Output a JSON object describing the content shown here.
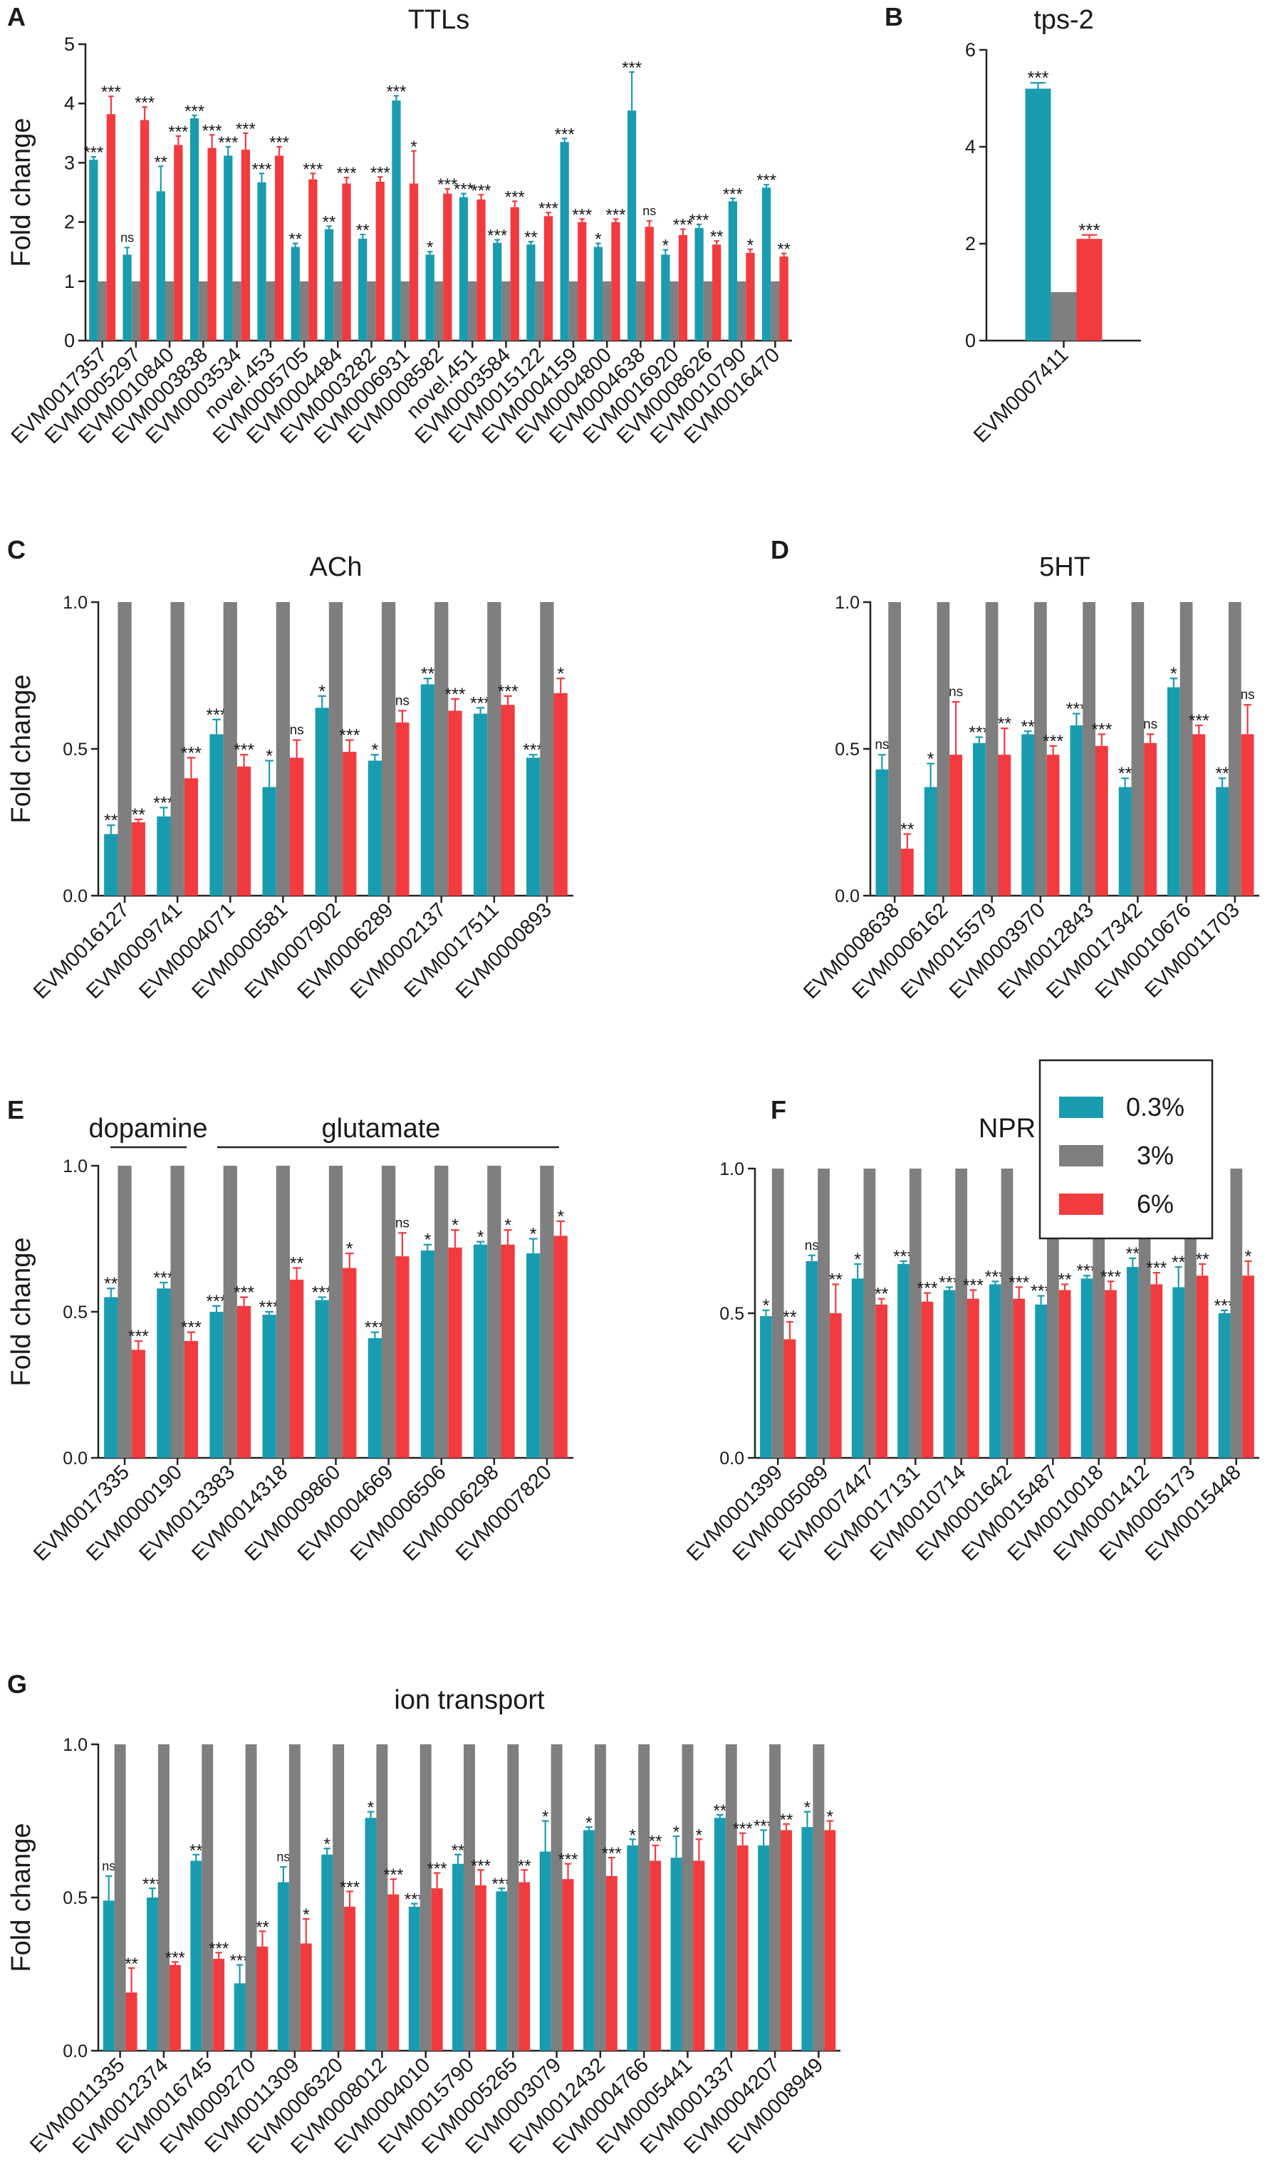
{
  "colors": {
    "c03": "#1a9cb0",
    "c3": "#7f7f7f",
    "c6": "#f23b3f",
    "axis": "#222222"
  },
  "legend": {
    "labels": [
      "0.3%",
      "3%",
      "6%"
    ]
  },
  "chart_data": [
    {
      "id": "A",
      "panel_label": "A",
      "type": "bar",
      "title": "TTLs",
      "ylabel": "Fold change",
      "ylim": [
        0,
        5
      ],
      "yticks": [
        "0",
        "1",
        "2",
        "3",
        "4",
        "5"
      ],
      "categories": [
        "EVM0017357",
        "EVM0005297",
        "EVM0010840",
        "EVM0003838",
        "EVM0003534",
        "novel.453",
        "EVM0005705",
        "EVM0004484",
        "EVM0003282",
        "EVM0006931",
        "EVM0008582",
        "novel.451",
        "EVM0003584",
        "EVM0015122",
        "EVM0004159",
        "EVM0004800",
        "EVM0004638",
        "EVM0016920",
        "EVM0008626",
        "EVM0010790",
        "EVM0016470"
      ],
      "series": [
        {
          "name": "0.3%",
          "values": [
            3.05,
            1.45,
            2.52,
            3.75,
            3.12,
            2.67,
            1.58,
            1.88,
            1.72,
            4.05,
            1.45,
            2.42,
            1.65,
            1.62,
            3.35,
            1.58,
            3.88,
            1.45,
            1.9,
            2.35,
            2.58
          ],
          "err": [
            0.05,
            0.12,
            0.42,
            0.05,
            0.15,
            0.15,
            0.06,
            0.05,
            0.07,
            0.08,
            0.05,
            0.06,
            0.05,
            0.05,
            0.06,
            0.06,
            0.65,
            0.08,
            0.06,
            0.05,
            0.05
          ],
          "sig": [
            "***",
            "ns",
            "**",
            "***",
            "***",
            "***",
            "**",
            "**",
            "**",
            "***",
            "*",
            "***",
            "***",
            "**",
            "***",
            "*",
            "***",
            "*",
            "***",
            "***",
            "***"
          ]
        },
        {
          "name": "3%",
          "values": [
            1,
            1,
            1,
            1,
            1,
            1,
            1,
            1,
            1,
            1,
            1,
            1,
            1,
            1,
            1,
            1,
            1,
            1,
            1,
            1,
            1
          ],
          "err": null,
          "sig": null
        },
        {
          "name": "6%",
          "values": [
            3.82,
            3.72,
            3.3,
            3.25,
            3.22,
            3.12,
            2.72,
            2.65,
            2.68,
            2.65,
            2.48,
            2.38,
            2.25,
            2.1,
            2.0,
            2.0,
            1.92,
            1.78,
            1.62,
            1.48,
            1.42
          ],
          "err": [
            0.3,
            0.22,
            0.15,
            0.22,
            0.28,
            0.15,
            0.1,
            0.1,
            0.08,
            0.55,
            0.08,
            0.08,
            0.1,
            0.06,
            0.05,
            0.05,
            0.1,
            0.1,
            0.06,
            0.06,
            0.05
          ],
          "sig": [
            "***",
            "***",
            "***",
            "***",
            "***",
            "***",
            "***",
            "***",
            "***",
            "*",
            "***",
            "***",
            "***",
            "***",
            "***",
            "***",
            "ns",
            "***",
            "**",
            "*",
            "**"
          ]
        }
      ]
    },
    {
      "id": "B",
      "panel_label": "B",
      "type": "bar",
      "title": "tps-2",
      "ylabel": "",
      "ylim": [
        0,
        6
      ],
      "yticks": [
        "0",
        "2",
        "4",
        "6"
      ],
      "categories": [
        "EVM0007411"
      ],
      "series": [
        {
          "name": "0.3%",
          "values": [
            5.2
          ],
          "err": [
            0.12
          ],
          "sig": [
            "***"
          ]
        },
        {
          "name": "3%",
          "values": [
            1
          ],
          "err": null,
          "sig": null
        },
        {
          "name": "6%",
          "values": [
            2.1
          ],
          "err": [
            0.08
          ],
          "sig": [
            "***"
          ]
        }
      ]
    },
    {
      "id": "C",
      "panel_label": "C",
      "type": "bar",
      "title": "ACh",
      "ylabel": "Fold change",
      "ylim": [
        0,
        1
      ],
      "yticks": [
        "0.0",
        "0.5",
        "1.0"
      ],
      "categories": [
        "EVM0016127",
        "EVM0009741",
        "EVM0004071",
        "EVM0000581",
        "EVM0007902",
        "EVM0006289",
        "EVM0002137",
        "EVM0017511",
        "EVM0000893"
      ],
      "series": [
        {
          "name": "0.3%",
          "values": [
            0.21,
            0.27,
            0.55,
            0.37,
            0.64,
            0.46,
            0.72,
            0.62,
            0.47
          ],
          "err": [
            0.03,
            0.03,
            0.05,
            0.09,
            0.04,
            0.02,
            0.02,
            0.02,
            0.01
          ],
          "sig": [
            "**",
            "***",
            "***",
            "*",
            "*",
            "*",
            "**",
            "***",
            "***"
          ]
        },
        {
          "name": "3%",
          "values": [
            1,
            1,
            1,
            1,
            1,
            1,
            1,
            1,
            1
          ],
          "err": null,
          "sig": null
        },
        {
          "name": "6%",
          "values": [
            0.25,
            0.4,
            0.44,
            0.47,
            0.49,
            0.59,
            0.63,
            0.65,
            0.69
          ],
          "err": [
            0.01,
            0.07,
            0.04,
            0.06,
            0.04,
            0.04,
            0.04,
            0.03,
            0.05
          ],
          "sig": [
            "**",
            "***",
            "***",
            "ns",
            "***",
            "ns",
            "***",
            "***",
            "*"
          ]
        }
      ]
    },
    {
      "id": "D",
      "panel_label": "D",
      "type": "bar",
      "title": "5HT",
      "ylabel": "",
      "ylim": [
        0,
        1
      ],
      "yticks": [
        "0.0",
        "0.5",
        "1.0"
      ],
      "categories": [
        "EVM0008638",
        "EVM0006162",
        "EVM0015579",
        "EVM0003970",
        "EVM0012843",
        "EVM0017342",
        "EVM0010676",
        "EVM0011703"
      ],
      "series": [
        {
          "name": "0.3%",
          "values": [
            0.43,
            0.37,
            0.52,
            0.55,
            0.58,
            0.37,
            0.71,
            0.37
          ],
          "err": [
            0.05,
            0.08,
            0.02,
            0.01,
            0.04,
            0.03,
            0.03,
            0.03
          ],
          "sig": [
            "ns",
            "*",
            "***",
            "**",
            "***",
            "**",
            "*",
            "**"
          ]
        },
        {
          "name": "3%",
          "values": [
            1,
            1,
            1,
            1,
            1,
            1,
            1,
            1
          ],
          "err": null,
          "sig": null
        },
        {
          "name": "6%",
          "values": [
            0.16,
            0.48,
            0.48,
            0.48,
            0.51,
            0.52,
            0.55,
            0.55
          ],
          "err": [
            0.05,
            0.18,
            0.09,
            0.03,
            0.04,
            0.03,
            0.03,
            0.1
          ],
          "sig": [
            "**",
            "ns",
            "**",
            "***",
            "***",
            "ns",
            "***",
            "ns"
          ]
        }
      ]
    },
    {
      "id": "E",
      "panel_label": "E",
      "type": "bar",
      "title": "",
      "group_labels": [
        "dopamine",
        "glutamate"
      ],
      "ylabel": "Fold change",
      "ylim": [
        0,
        1
      ],
      "yticks": [
        "0.0",
        "0.5",
        "1.0"
      ],
      "categories": [
        "EVM0017335",
        "EVM0000190",
        "EVM0013383",
        "EVM0014318",
        "EVM0009860",
        "EVM0004669",
        "EVM0006506",
        "EVM0006298",
        "EVM0007820"
      ],
      "series": [
        {
          "name": "0.3%",
          "values": [
            0.55,
            0.58,
            0.5,
            0.49,
            0.54,
            0.41,
            0.71,
            0.73,
            0.7
          ],
          "err": [
            0.03,
            0.02,
            0.02,
            0.01,
            0.01,
            0.02,
            0.02,
            0.01,
            0.05
          ],
          "sig": [
            "**",
            "***",
            "***",
            "***",
            "***",
            "***",
            "*",
            "*",
            "*"
          ]
        },
        {
          "name": "3%",
          "values": [
            1,
            1,
            1,
            1,
            1,
            1,
            1,
            1,
            1
          ],
          "err": null,
          "sig": null
        },
        {
          "name": "6%",
          "values": [
            0.37,
            0.4,
            0.52,
            0.61,
            0.65,
            0.69,
            0.72,
            0.73,
            0.76
          ],
          "err": [
            0.03,
            0.03,
            0.03,
            0.04,
            0.05,
            0.08,
            0.06,
            0.05,
            0.05
          ],
          "sig": [
            "***",
            "***",
            "***",
            "**",
            "*",
            "ns",
            "*",
            "*",
            "*"
          ]
        }
      ]
    },
    {
      "id": "F",
      "panel_label": "F",
      "type": "bar",
      "title": "NPR",
      "ylabel": "",
      "ylim": [
        0,
        1
      ],
      "yticks": [
        "0.0",
        "0.5",
        "1.0"
      ],
      "categories": [
        "EVM0001399",
        "EVM0005089",
        "EVM0007447",
        "EVM0017131",
        "EVM0010714",
        "EVM0001642",
        "EVM0015487",
        "EVM0010018",
        "EVM0001412",
        "EVM0005173",
        "EVM0015448"
      ],
      "series": [
        {
          "name": "0.3%",
          "values": [
            0.49,
            0.68,
            0.62,
            0.67,
            0.58,
            0.6,
            0.53,
            0.62,
            0.66,
            0.59,
            0.5
          ],
          "err": [
            0.02,
            0.02,
            0.05,
            0.01,
            0.01,
            0.01,
            0.03,
            0.01,
            0.03,
            0.07,
            0.01
          ],
          "sig": [
            "*",
            "ns",
            "*",
            "***",
            "***",
            "***",
            "***",
            "***",
            "**",
            "**",
            "***"
          ]
        },
        {
          "name": "3%",
          "values": [
            1,
            1,
            1,
            1,
            1,
            1,
            1,
            1,
            1,
            1,
            1
          ],
          "err": null,
          "sig": null
        },
        {
          "name": "6%",
          "values": [
            0.41,
            0.5,
            0.53,
            0.54,
            0.55,
            0.55,
            0.58,
            0.58,
            0.6,
            0.63,
            0.63
          ],
          "err": [
            0.06,
            0.1,
            0.02,
            0.03,
            0.03,
            0.04,
            0.02,
            0.03,
            0.04,
            0.04,
            0.05
          ],
          "sig": [
            "**",
            "**",
            "**",
            "***",
            "***",
            "***",
            "**",
            "***",
            "***",
            "**",
            "*"
          ]
        }
      ]
    },
    {
      "id": "G",
      "panel_label": "G",
      "type": "bar",
      "title": "ion transport",
      "ylabel": "Fold change",
      "ylim": [
        0,
        1
      ],
      "yticks": [
        "0.0",
        "0.5",
        "1.0"
      ],
      "categories": [
        "EVM0011335",
        "EVM0012374",
        "EVM0016745",
        "EVM0009270",
        "EVM0011309",
        "EVM0006320",
        "EVM0008012",
        "EVM0004010",
        "EVM0015790",
        "EVM0005265",
        "EVM0003079",
        "EVM0012432",
        "EVM0004766",
        "EVM0005441",
        "EVM0001337",
        "EVM0004207",
        "EVM0008949"
      ],
      "series": [
        {
          "name": "0.3%",
          "values": [
            0.49,
            0.5,
            0.62,
            0.22,
            0.55,
            0.64,
            0.76,
            0.47,
            0.61,
            0.52,
            0.65,
            0.72,
            0.67,
            0.63,
            0.76,
            0.67,
            0.73
          ],
          "err": [
            0.08,
            0.03,
            0.02,
            0.06,
            0.05,
            0.02,
            0.02,
            0.01,
            0.03,
            0.01,
            0.1,
            0.01,
            0.02,
            0.07,
            0.01,
            0.05,
            0.05
          ],
          "sig": [
            "ns",
            "***",
            "**",
            "***",
            "ns",
            "*",
            "*",
            "***",
            "**",
            "***",
            "*",
            "*",
            "*",
            "*",
            "**",
            "***",
            "*"
          ]
        },
        {
          "name": "3%",
          "values": [
            1,
            1,
            1,
            1,
            1,
            1,
            1,
            1,
            1,
            1,
            1,
            1,
            1,
            1,
            1,
            1,
            1
          ],
          "err": null,
          "sig": null
        },
        {
          "name": "6%",
          "values": [
            0.19,
            0.28,
            0.3,
            0.34,
            0.35,
            0.47,
            0.51,
            0.53,
            0.54,
            0.55,
            0.56,
            0.57,
            0.62,
            0.62,
            0.67,
            0.72,
            0.72
          ],
          "err": [
            0.08,
            0.01,
            0.02,
            0.05,
            0.08,
            0.05,
            0.05,
            0.05,
            0.05,
            0.04,
            0.05,
            0.06,
            0.05,
            0.07,
            0.04,
            0.02,
            0.03
          ],
          "sig": [
            "**",
            "***",
            "***",
            "**",
            "*",
            "***",
            "***",
            "***",
            "***",
            "**",
            "***",
            "***",
            "**",
            "*",
            "***",
            "**",
            "*"
          ]
        }
      ]
    }
  ]
}
